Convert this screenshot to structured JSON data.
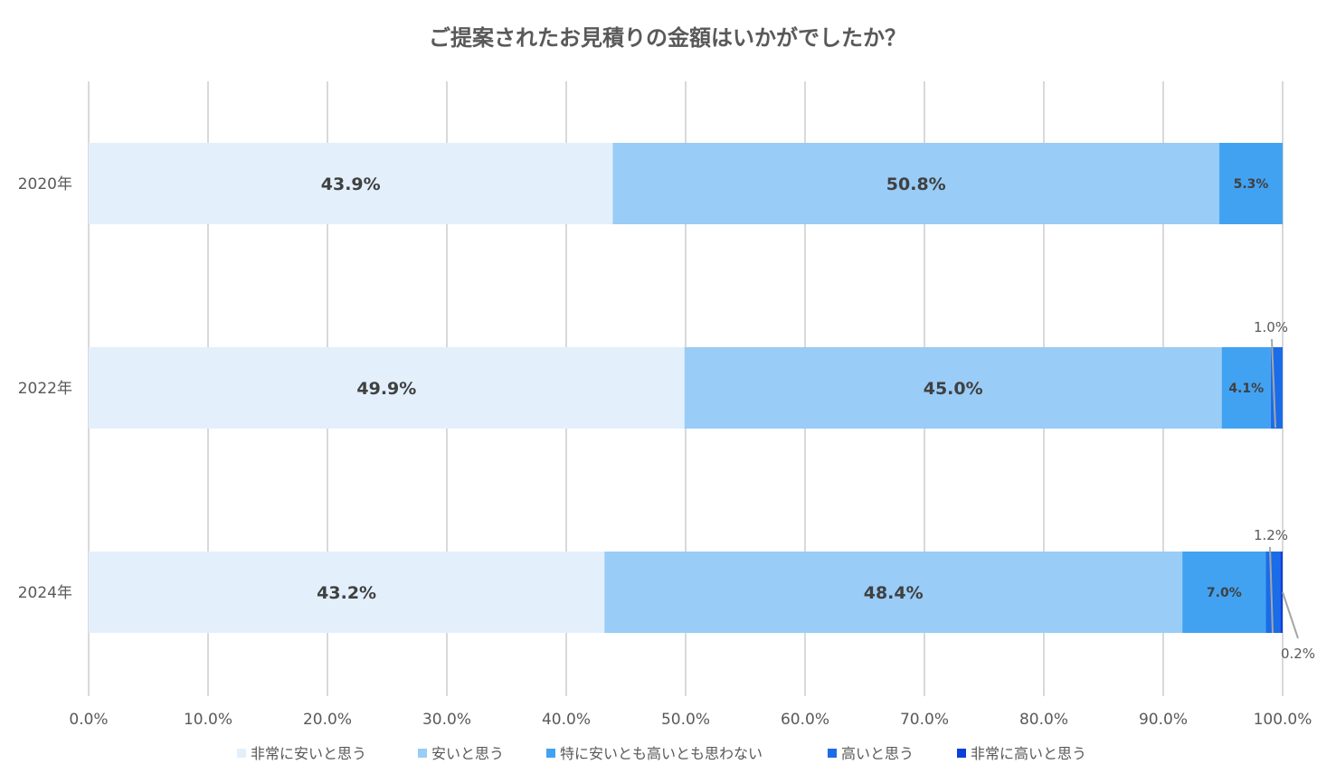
{
  "chart_data": {
    "type": "bar",
    "orientation": "horizontal",
    "stacked": "percent",
    "title": "ご提案されたお見積りの金額はいかがでしたか？",
    "categories": [
      "2020年",
      "2022年",
      "2024年"
    ],
    "series": [
      {
        "name": "非常に安いと思う",
        "color": "#e3f0fc",
        "values": [
          43.9,
          49.9,
          43.2
        ],
        "labels": [
          "43.9%",
          "49.9%",
          "43.2%"
        ]
      },
      {
        "name": "安いと思う",
        "color": "#99ccf7",
        "values": [
          50.8,
          45.0,
          48.4
        ],
        "labels": [
          "50.8%",
          "45.0%",
          "48.4%"
        ]
      },
      {
        "name": "特に安いとも高いとも思わない",
        "color": "#42a2f2",
        "values": [
          5.3,
          4.1,
          7.0
        ],
        "labels": [
          "5.3%",
          "4.1%",
          "7.0%"
        ]
      },
      {
        "name": "高いと思う",
        "color": "#1a6ce8",
        "values": [
          0,
          1.0,
          1.2
        ],
        "labels": [
          null,
          "1.0%",
          "1.2%"
        ]
      },
      {
        "name": "非常に高いと思う",
        "color": "#0b3fdb",
        "values": [
          0,
          0,
          0.2
        ],
        "labels": [
          null,
          null,
          "0.2%"
        ]
      }
    ],
    "xlim": [
      0,
      100
    ],
    "xticks": [
      "0.0%",
      "10.0%",
      "20.0%",
      "30.0%",
      "40.0%",
      "50.0%",
      "60.0%",
      "70.0%",
      "80.0%",
      "90.0%",
      "100.0%"
    ],
    "grid": true,
    "legend": "bottom"
  }
}
